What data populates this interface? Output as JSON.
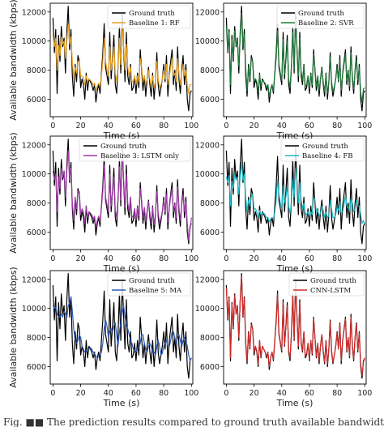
{
  "caption": "Fig. ■■ The prediction results compared to ground truth available bandwidth",
  "chart_data": [
    {
      "type": "line",
      "xlabel": "Time (s)",
      "ylabel": "Available bandwidth (kbps)",
      "xlim": [
        -2,
        101
      ],
      "ylim": [
        4800,
        12600
      ],
      "xticks": [
        0,
        20,
        40,
        60,
        80,
        100
      ],
      "yticks": [
        6000,
        8000,
        10000,
        12000
      ],
      "legend_position": "top-right",
      "x": [
        0,
        1,
        2,
        3,
        4,
        5,
        6,
        7,
        8,
        9,
        10,
        11,
        12,
        13,
        14,
        15,
        16,
        17,
        18,
        19,
        20,
        21,
        22,
        23,
        24,
        25,
        26,
        27,
        28,
        29,
        30,
        31,
        32,
        33,
        34,
        35,
        36,
        37,
        38,
        39,
        40,
        41,
        42,
        43,
        44,
        45,
        46,
        47,
        48,
        49,
        50,
        51,
        52,
        53,
        54,
        55,
        56,
        57,
        58,
        59,
        60,
        61,
        62,
        63,
        64,
        65,
        66,
        67,
        68,
        69,
        70,
        71,
        72,
        73,
        74,
        75,
        76,
        77,
        78,
        79,
        80,
        81,
        82,
        83,
        84,
        85,
        86,
        87,
        88,
        89,
        90,
        91,
        92,
        93,
        94,
        95,
        96,
        97,
        98,
        99,
        100
      ],
      "series": [
        {
          "name": "Ground truth",
          "color": "#000000",
          "values": [
            11600,
            9200,
            10800,
            6400,
            10400,
            8600,
            11000,
            9600,
            10200,
            7800,
            10600,
            12400,
            9400,
            10800,
            7600,
            6200,
            8400,
            7200,
            9000,
            8600,
            6800,
            7400,
            7000,
            6000,
            7800,
            6600,
            7400,
            7200,
            7000,
            6600,
            7000,
            5800,
            6600,
            7000,
            6400,
            7800,
            9200,
            11200,
            8200,
            7600,
            7000,
            10600,
            7400,
            8800,
            10400,
            7000,
            6400,
            8200,
            11000,
            7800,
            12000,
            9400,
            7200,
            10600,
            7600,
            7000,
            8400,
            6600,
            6800,
            7600,
            6400,
            7800,
            6800,
            9400,
            8000,
            6600,
            7600,
            6200,
            7400,
            8200,
            7000,
            6200,
            7800,
            6000,
            7200,
            9200,
            7000,
            6200,
            6800,
            7400,
            8400,
            7200,
            9000,
            6200,
            7800,
            8600,
            9400,
            7000,
            8000,
            6600,
            9600,
            7400,
            6400,
            8000,
            9000,
            7000,
            8400,
            6000,
            5200,
            6400,
            6600
          ]
        },
        {
          "name": "Baseline 1: RF",
          "color": "#e8a020",
          "values": [
            10400,
            9600,
            10200,
            8000,
            9700,
            9000,
            10300,
            9800,
            10000,
            8800,
            10000,
            11200,
            9800,
            10300,
            8600,
            7400,
            8200,
            7800,
            8600,
            8600,
            7600,
            7600,
            7500,
            7000,
            7600,
            7200,
            7400,
            7300,
            7200,
            7000,
            7100,
            6600,
            6900,
            7100,
            6900,
            7600,
            8600,
            10200,
            8600,
            8000,
            7600,
            9600,
            8000,
            8600,
            9600,
            7800,
            7200,
            8200,
            10200,
            8400,
            11000,
            9600,
            8000,
            9800,
            8200,
            7600,
            8200,
            7200,
            7200,
            7600,
            7000,
            7600,
            7200,
            8800,
            8200,
            7200,
            7600,
            7000,
            7400,
            8000,
            7400,
            6800,
            7600,
            6800,
            7200,
            8600,
            7400,
            6800,
            7000,
            7400,
            8000,
            7400,
            8400,
            7000,
            7600,
            8200,
            8800,
            7600,
            7800,
            7200,
            8800,
            7800,
            7000,
            7800,
            8400,
            7600,
            8000,
            7000,
            6400,
            7000,
            7000
          ]
        },
        {
          "name": "Baseline 2: SVR",
          "color": "#1f7a3a",
          "values": [
            11000,
            9300,
            10600,
            7000,
            10100,
            8800,
            10700,
            9700,
            10100,
            8300,
            10300,
            11900,
            9700,
            10500,
            8200,
            6600,
            8200,
            7400,
            8800,
            8600,
            7200,
            7400,
            7200,
            6500,
            7700,
            6900,
            7300,
            7200,
            7100,
            6800,
            7000,
            6200,
            6700,
            7000,
            6600,
            7700,
            8800,
            10700,
            8400,
            7800,
            7300,
            10100,
            7700,
            8600,
            10000,
            7400,
            6800,
            8200,
            10600,
            8100,
            11500,
            9500,
            7600,
            10200,
            7900,
            7300,
            8300,
            6900,
            7000,
            7600,
            6700,
            7700,
            7000,
            9100,
            8100,
            6900,
            7600,
            6600,
            7400,
            8100,
            7200,
            6500,
            7700,
            6400,
            7200,
            8900,
            7200,
            6500,
            6900,
            7400,
            8200,
            7300,
            8700,
            6600,
            7700,
            8400,
            9100,
            7300,
            7900,
            6900,
            9200,
            7600,
            6700,
            7900,
            8700,
            7300,
            8200,
            6500,
            5800,
            6700,
            6800
          ]
        },
        {
          "name": "Baseline 3: LSTM only",
          "color": "#a03aa8",
          "values": [
            10200,
            9600,
            10000,
            7400,
            9800,
            9000,
            10400,
            9800,
            10200,
            8400,
            10200,
            11600,
            9600,
            10400,
            8000,
            6800,
            8400,
            7600,
            8800,
            8800,
            7200,
            7600,
            7400,
            6600,
            7800,
            7000,
            7400,
            7300,
            7200,
            6900,
            7100,
            6300,
            6800,
            7100,
            6700,
            7700,
            8800,
            10600,
            8400,
            7900,
            7400,
            10000,
            7800,
            8700,
            9800,
            7500,
            7000,
            8300,
            10500,
            8200,
            11400,
            9600,
            7700,
            10000,
            8000,
            7400,
            8400,
            7000,
            7100,
            7600,
            6800,
            7700,
            7100,
            9000,
            8200,
            7000,
            7700,
            6700,
            7500,
            8100,
            7300,
            6600,
            7700,
            6500,
            7300,
            8800,
            7300,
            6600,
            7000,
            7400,
            8200,
            7400,
            8600,
            6700,
            7700,
            8400,
            9000,
            7400,
            7900,
            7000,
            9100,
            7700,
            6800,
            7900,
            8600,
            7400,
            8100,
            6600,
            5400,
            6200,
            7000
          ]
        },
        {
          "name": "Baseline 4: FB",
          "color": "#18b8c4",
          "values": [
            9800,
            9400,
            9900,
            7800,
            9500,
            9000,
            10000,
            9600,
            9800,
            8600,
            9800,
            10800,
            9600,
            10000,
            8400,
            7400,
            8200,
            7800,
            8400,
            8600,
            7600,
            7600,
            7400,
            7000,
            7500,
            7200,
            7300,
            7300,
            7200,
            7000,
            7000,
            6700,
            6900,
            7000,
            6900,
            7400,
            8200,
            9600,
            8600,
            8000,
            7600,
            9200,
            8000,
            8400,
            9200,
            7800,
            7300,
            8000,
            9600,
            8400,
            10400,
            9600,
            8000,
            9400,
            8200,
            7600,
            8000,
            7300,
            7200,
            7400,
            7100,
            7400,
            7200,
            8400,
            8200,
            7400,
            7500,
            7100,
            7300,
            7800,
            7500,
            7000,
            7400,
            7000,
            7100,
            8200,
            7600,
            7000,
            7000,
            7200,
            7700,
            7500,
            8100,
            7300,
            7400,
            7900,
            8500,
            7800,
            7700,
            7400,
            8300,
            8000,
            7400,
            7600,
            8200,
            7800,
            7800,
            7200,
            6600,
            6800,
            6600
          ]
        },
        {
          "name": "Baseline 5: MA",
          "color": "#2a58b8",
          "values": [
            10200,
            10000,
            10100,
            9600,
            9400,
            9400,
            9600,
            9400,
            9800,
            9600,
            9400,
            10200,
            10400,
            10800,
            9800,
            8600,
            7800,
            7600,
            7800,
            8200,
            8000,
            7400,
            7200,
            7000,
            7000,
            7200,
            7200,
            7300,
            7200,
            7000,
            6900,
            6700,
            6600,
            6700,
            6800,
            7000,
            7600,
            8600,
            9200,
            8800,
            8000,
            8400,
            8600,
            8400,
            8800,
            9000,
            8200,
            7400,
            8400,
            9000,
            9800,
            10200,
            9400,
            8800,
            8600,
            8200,
            7800,
            7600,
            7200,
            7000,
            7000,
            7200,
            7300,
            7600,
            8200,
            8200,
            7600,
            7200,
            7000,
            7400,
            7600,
            7400,
            7000,
            7000,
            6800,
            7400,
            7800,
            7400,
            6800,
            6900,
            7400,
            7600,
            7800,
            7400,
            7400,
            7800,
            8400,
            8400,
            8000,
            7600,
            8000,
            8200,
            7800,
            7400,
            7800,
            8000,
            7800,
            7400,
            6800,
            6400,
            6600
          ]
        },
        {
          "name": "CNN-LSTM",
          "color": "#d42a2a",
          "values": [
            11400,
            9300,
            10700,
            6600,
            10300,
            8700,
            10900,
            9600,
            10200,
            8000,
            10500,
            12200,
            9500,
            10700,
            7800,
            6400,
            8300,
            7300,
            8900,
            8600,
            7000,
            7400,
            7100,
            6200,
            7800,
            6700,
            7400,
            7200,
            7000,
            6700,
            7000,
            6000,
            6600,
            7000,
            6500,
            7800,
            9000,
            11000,
            8300,
            7700,
            7100,
            10400,
            7500,
            8700,
            10200,
            7100,
            6600,
            8200,
            10800,
            7900,
            11800,
            9400,
            7400,
            10400,
            7700,
            7100,
            8400,
            6700,
            6900,
            7600,
            6500,
            7800,
            6900,
            9300,
            8000,
            6700,
            7600,
            6400,
            7400,
            8200,
            7100,
            6300,
            7800,
            6200,
            7200,
            9100,
            7100,
            6300,
            6800,
            7400,
            8300,
            7200,
            8900,
            6400,
            7800,
            8500,
            9300,
            7100,
            8000,
            6700,
            9400,
            7500,
            6500,
            8000,
            8900,
            7100,
            8300,
            6200,
            5400,
            6300,
            6600
          ]
        }
      ],
      "panels": [
        {
          "legend": [
            "Ground truth",
            "Baseline 1: RF"
          ],
          "series_idx": 1
        },
        {
          "legend": [
            "Ground truth",
            "Baseline 2: SVR"
          ],
          "series_idx": 2
        },
        {
          "legend": [
            "Ground truth",
            "Baseline 3: LSTM only"
          ],
          "series_idx": 3
        },
        {
          "legend": [
            "Ground truth",
            "Baseline 4: FB"
          ],
          "series_idx": 4
        },
        {
          "legend": [
            "Ground truth",
            "Baseline 5: MA"
          ],
          "series_idx": 5
        },
        {
          "legend": [
            "Ground truth",
            "CNN-LSTM"
          ],
          "series_idx": 6
        }
      ]
    }
  ]
}
